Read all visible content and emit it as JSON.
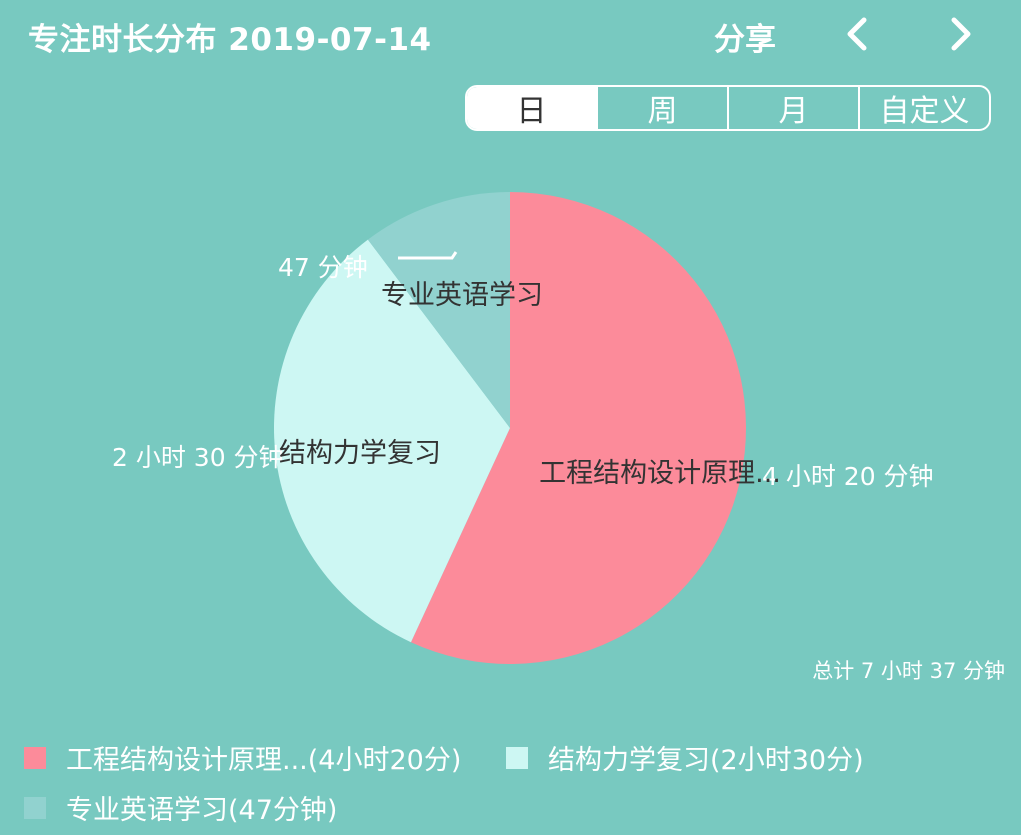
{
  "header": {
    "title": "专注时长分布  2019-07-14",
    "share_label": "分享"
  },
  "tabs": [
    {
      "label": "日",
      "active": true
    },
    {
      "label": "周",
      "active": false
    },
    {
      "label": "月",
      "active": false
    },
    {
      "label": "自定义",
      "active": false
    }
  ],
  "chart_data": {
    "type": "pie",
    "slices": [
      {
        "name": "工程结构设计原理...",
        "value": 260,
        "value_label": "4 小时 20 分钟",
        "color": "#fc8b9a"
      },
      {
        "name": "结构力学复习",
        "value": 150,
        "value_label": "2 小时 30 分钟",
        "color": "#cdf7f3"
      },
      {
        "name": "专业英语学习",
        "value": 47,
        "value_label": "47 分钟",
        "color": "#91d2cf"
      }
    ],
    "legend": [
      "工程结构设计原理...(4小时20分)",
      "结构力学复习(2小时30分)",
      "专业英语学习(47分钟)"
    ]
  },
  "summary": {
    "total_label": "总计 7 小时 37 分钟"
  },
  "colors": {
    "background": "#78c9c0",
    "text": "#ffffff"
  }
}
